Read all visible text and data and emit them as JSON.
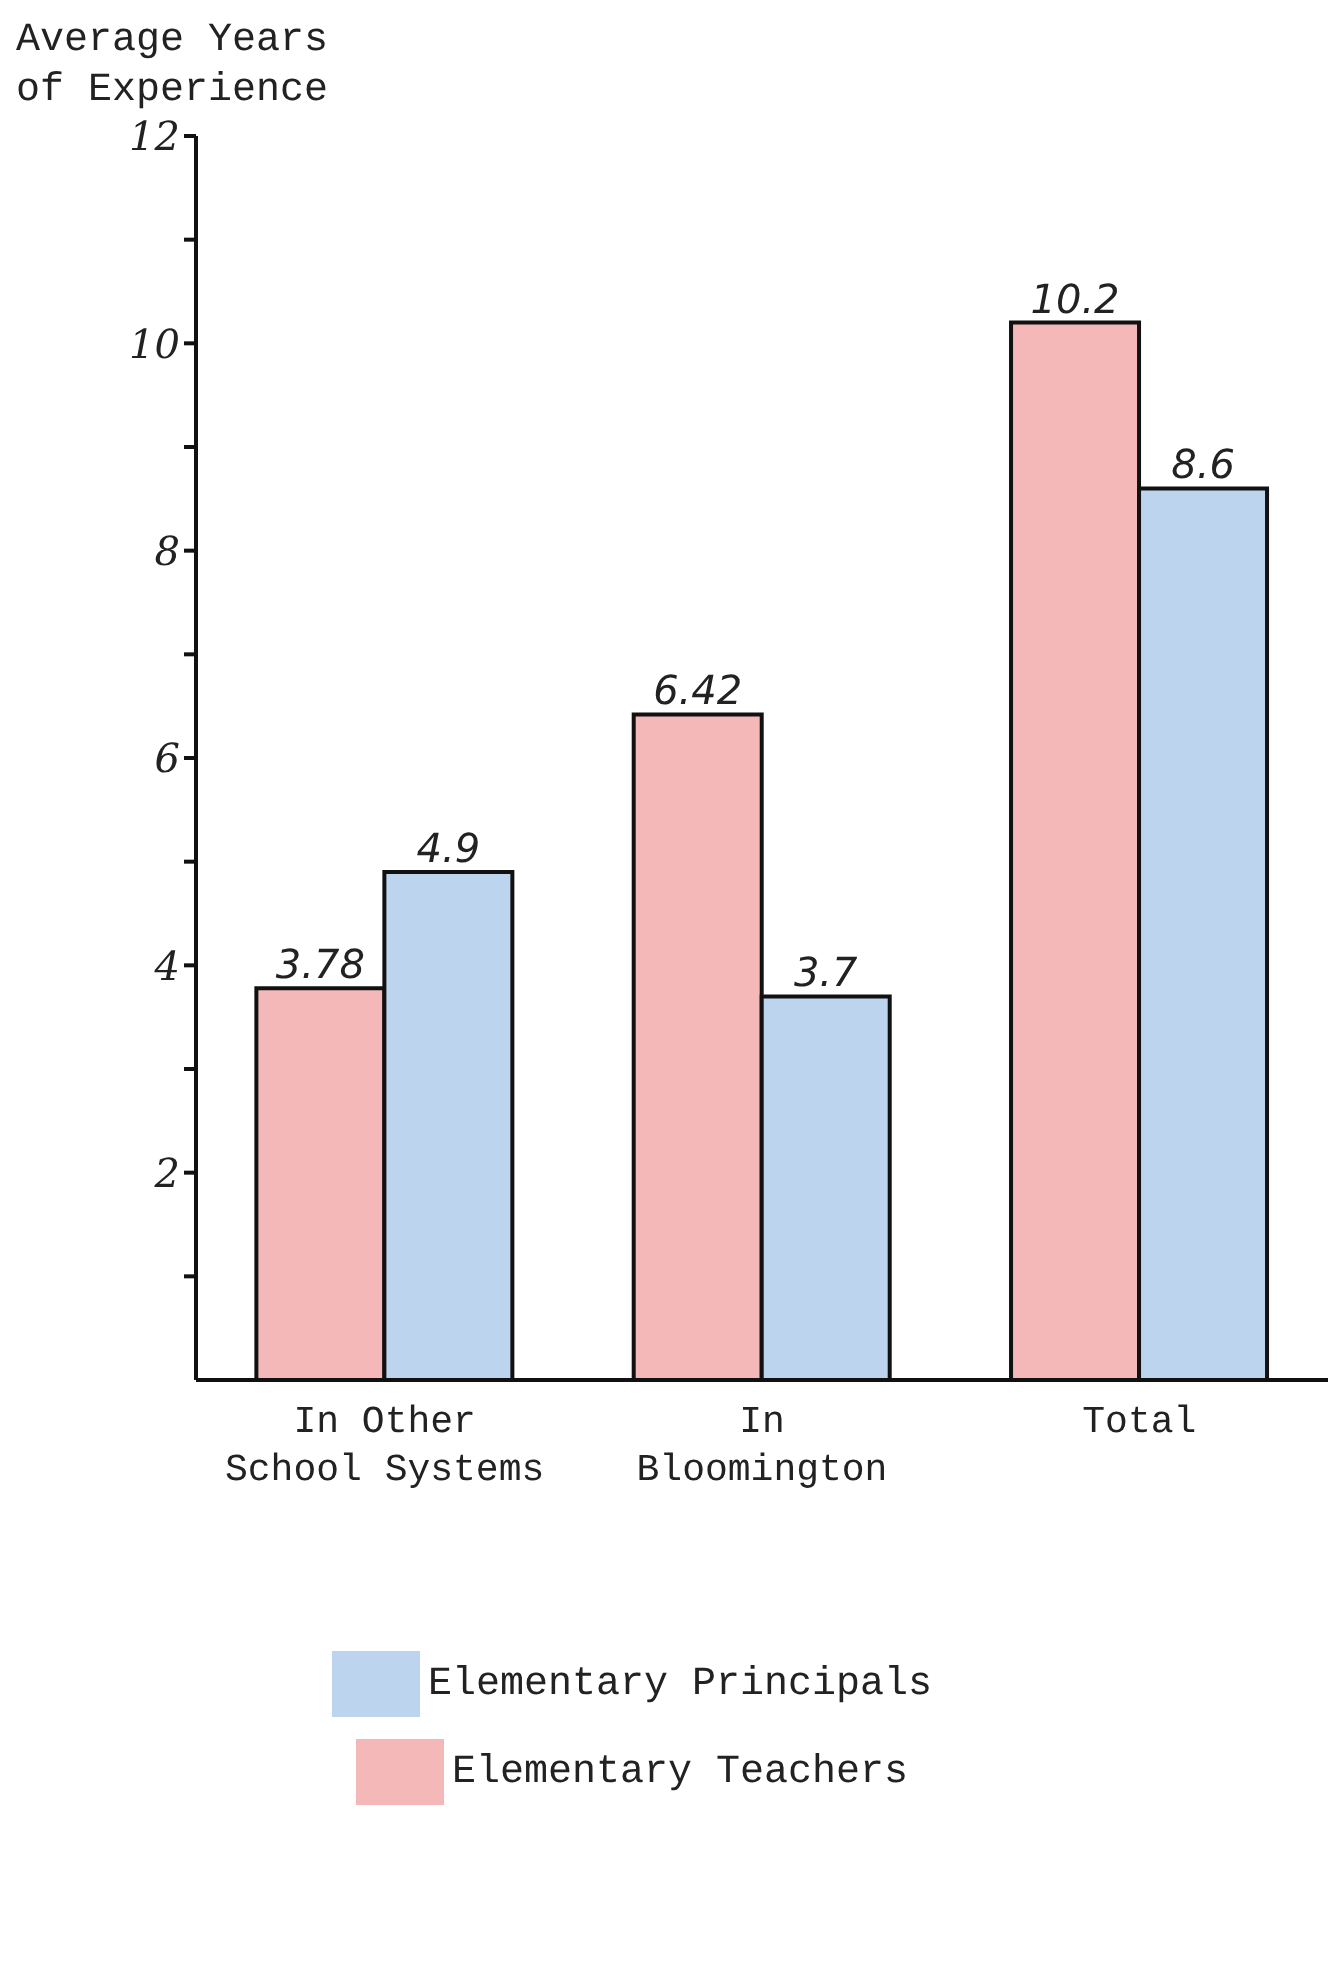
{
  "chart_data": {
    "type": "bar",
    "ylabel": "Average Years of Experience",
    "categories": [
      "In Other\nSchool Systems",
      "In\nBloomington",
      "Total"
    ],
    "series": [
      {
        "name": "Elementary Teachers",
        "color": "#f4b8b8",
        "values": [
          3.78,
          6.42,
          10.2
        ]
      },
      {
        "name": "Elementary Principals",
        "color": "#bcd4ee",
        "values": [
          4.9,
          3.7,
          8.6
        ]
      }
    ],
    "ylim": [
      0,
      12
    ],
    "yticks": [
      {
        "value": 1,
        "label": null
      },
      2,
      {
        "value": 3,
        "label": null
      },
      4,
      {
        "value": 5,
        "label": null
      },
      6,
      {
        "value": 7,
        "label": null
      },
      8,
      {
        "value": 9,
        "label": null
      },
      10,
      {
        "value": 11,
        "label": null
      },
      12
    ],
    "data_labels": true,
    "legend": "bottom",
    "grid": false
  }
}
